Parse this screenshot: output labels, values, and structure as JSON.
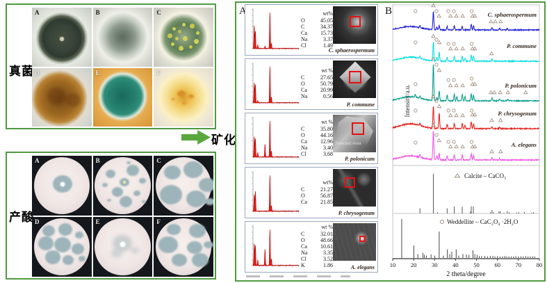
{
  "left": {
    "fungi_box": {
      "label": "真菌",
      "panels": [
        "A",
        "B",
        "C",
        "D",
        "E",
        "F"
      ]
    },
    "acid_box": {
      "label": "产酸",
      "panels": [
        "A",
        "B",
        "C",
        "D",
        "E",
        "F"
      ]
    }
  },
  "arrow": {
    "label": "矿化"
  },
  "right": {
    "panel_a": {
      "label": "A",
      "rows": [
        {
          "species": "C. sphaerospermum",
          "wt_header": "wt%",
          "elements": [
            [
              "O",
              "45.05"
            ],
            [
              "C",
              "34.37"
            ],
            [
              "Ca",
              "15.73"
            ],
            [
              "Na",
              "3.37"
            ],
            [
              "Cl",
              "1.49"
            ]
          ],
          "eds_peaks": [
            [
              0.28,
              0.62
            ],
            [
              0.52,
              0.48
            ],
            [
              1.04,
              0.1
            ],
            [
              2.62,
              0.06
            ],
            [
              3.69,
              1.0
            ],
            [
              4.01,
              0.14
            ]
          ]
        },
        {
          "species": "P. commune",
          "wt_header": "wt %",
          "elements": [
            [
              "C",
              "27.65"
            ],
            [
              "O",
              "50.79"
            ],
            [
              "Ca",
              "20.99"
            ],
            [
              "Na",
              "0.56"
            ]
          ],
          "eds_peaks": [
            [
              0.28,
              0.55
            ],
            [
              0.52,
              0.5
            ],
            [
              1.04,
              0.06
            ],
            [
              3.69,
              1.0
            ],
            [
              4.01,
              0.15
            ]
          ]
        },
        {
          "species": "P. polonicum",
          "wt_header": "wt %",
          "sem_note": "Selected Area",
          "elements": [
            [
              "C",
              "35.80"
            ],
            [
              "O",
              "44.16"
            ],
            [
              "Ca",
              "12.96"
            ],
            [
              "Na",
              "3.40"
            ],
            [
              "Cl",
              "3.68"
            ]
          ],
          "eds_peaks": [
            [
              0.28,
              0.55
            ],
            [
              0.52,
              0.5
            ],
            [
              1.04,
              0.12
            ],
            [
              2.62,
              0.35
            ],
            [
              3.69,
              1.0
            ],
            [
              4.01,
              0.16
            ]
          ]
        },
        {
          "species": "P. chrysogenum",
          "wt_header": "wt%",
          "elements": [
            [
              "C",
              "21.27"
            ],
            [
              "O",
              "56.87"
            ],
            [
              "Ca",
              "21.85"
            ]
          ],
          "eds_peaks": [
            [
              0.28,
              0.45
            ],
            [
              0.52,
              0.55
            ],
            [
              3.69,
              1.0
            ],
            [
              4.01,
              0.15
            ]
          ]
        },
        {
          "species": "A. elegans",
          "wt_header": "wt %",
          "elements": [
            [
              "C",
              "32.01"
            ],
            [
              "O",
              "48.66"
            ],
            [
              "Ca",
              "10.61"
            ],
            [
              "Na",
              "3.35"
            ],
            [
              "Cl",
              "3.52"
            ],
            [
              "K",
              "1.86"
            ]
          ],
          "eds_peaks": [
            [
              0.28,
              0.6
            ],
            [
              0.52,
              0.55
            ],
            [
              1.04,
              0.15
            ],
            [
              2.62,
              0.45
            ],
            [
              3.69,
              1.0
            ],
            [
              4.01,
              0.18
            ]
          ]
        }
      ]
    },
    "panel_b": {
      "label": "B"
    }
  },
  "chart_data": {
    "type": "line",
    "xlabel": "2 theta/degree",
    "ylabel": "Intensity/a.u.",
    "xlim": [
      10,
      80
    ],
    "xticks": [
      10,
      20,
      30,
      40,
      50,
      60,
      70,
      80
    ],
    "legend_position": "right-inside",
    "series": [
      {
        "name": "C. sphaerospermum",
        "color": "#2424d6",
        "hump": 5,
        "peaks": [
          [
            23,
            3
          ],
          [
            29.4,
            26
          ],
          [
            31.1,
            4
          ],
          [
            32.2,
            6
          ],
          [
            36,
            5
          ],
          [
            39.4,
            6
          ],
          [
            43.2,
            5
          ],
          [
            47.5,
            8
          ],
          [
            48.6,
            6
          ],
          [
            57.4,
            3
          ],
          [
            61,
            2.5
          ],
          [
            64.7,
            2
          ]
        ],
        "circles": [
          [
            20.9,
            27
          ],
          [
            30.9,
            27
          ],
          [
            36.6,
            27
          ],
          [
            39.2,
            27
          ],
          [
            47.7,
            27
          ]
        ],
        "triangles": [
          [
            29.4,
            35
          ],
          [
            32.1,
            20
          ],
          [
            37.6,
            20
          ],
          [
            40.4,
            20
          ],
          [
            43.4,
            20
          ],
          [
            48.1,
            20
          ],
          [
            49.2,
            20
          ],
          [
            56.9,
            12
          ],
          [
            59,
            12
          ],
          [
            61.5,
            12
          ]
        ]
      },
      {
        "name": "P.  commune",
        "color": "#0cdfe0",
        "hump": 6,
        "peaks": [
          [
            23,
            3
          ],
          [
            29.4,
            27
          ],
          [
            31.1,
            5
          ],
          [
            32.2,
            13
          ],
          [
            36,
            6
          ],
          [
            39.4,
            7
          ],
          [
            43.2,
            7
          ],
          [
            44.5,
            5
          ],
          [
            47.5,
            9
          ],
          [
            48.6,
            7
          ],
          [
            57.4,
            3
          ]
        ],
        "circles": [
          [
            20.9,
            27
          ],
          [
            30.9,
            31
          ],
          [
            36.6,
            25
          ],
          [
            39.2,
            25
          ],
          [
            47.7,
            25
          ]
        ],
        "triangles": [
          [
            29.4,
            36
          ],
          [
            32.2,
            27
          ],
          [
            37.6,
            18
          ],
          [
            40.4,
            18
          ],
          [
            43.4,
            18
          ],
          [
            48.1,
            18
          ],
          [
            49.2,
            18
          ],
          [
            57.2,
            11
          ]
        ]
      },
      {
        "name": "P. polonicum",
        "color": "#0aa08e",
        "hump": 6,
        "peaks": [
          [
            20.8,
            4
          ],
          [
            23,
            3
          ],
          [
            29.4,
            52
          ],
          [
            31.1,
            5
          ],
          [
            32.2,
            14
          ],
          [
            36,
            8
          ],
          [
            39.4,
            10
          ],
          [
            40.6,
            6
          ],
          [
            43.2,
            9
          ],
          [
            44.5,
            6
          ],
          [
            47.5,
            10
          ],
          [
            48.6,
            8
          ],
          [
            57.4,
            4
          ],
          [
            61,
            3
          ],
          [
            65,
            2
          ]
        ],
        "circles": [
          [
            20.9,
            24
          ],
          [
            30.9,
            52
          ],
          [
            36.6,
            30
          ],
          [
            39.2,
            30
          ],
          [
            47.7,
            32
          ]
        ],
        "triangles": [
          [
            29.4,
            60
          ],
          [
            32.2,
            44
          ],
          [
            37.6,
            22
          ],
          [
            40.4,
            22
          ],
          [
            43.4,
            22
          ],
          [
            48.1,
            24
          ],
          [
            49.2,
            24
          ],
          [
            56.9,
            12
          ],
          [
            58.5,
            12
          ],
          [
            61.3,
            12
          ],
          [
            65,
            12
          ],
          [
            73.5,
            12
          ]
        ]
      },
      {
        "name": "P. chrysogenum",
        "color": "#e62420",
        "hump": 7,
        "peaks": [
          [
            23,
            3
          ],
          [
            29.4,
            32
          ],
          [
            32.2,
            22
          ],
          [
            36,
            6
          ],
          [
            39.4,
            7
          ],
          [
            43.2,
            8
          ],
          [
            44.5,
            5
          ],
          [
            47.5,
            9
          ],
          [
            48.6,
            7
          ],
          [
            57.4,
            3
          ],
          [
            61,
            2
          ]
        ],
        "circles": [
          [
            20.9,
            26
          ],
          [
            30.9,
            40
          ],
          [
            36.6,
            26
          ],
          [
            39.2,
            26
          ],
          [
            47.7,
            26
          ]
        ],
        "triangles": [
          [
            29.4,
            46
          ],
          [
            32.2,
            32
          ],
          [
            37.6,
            19
          ],
          [
            40.4,
            19
          ],
          [
            43.4,
            19
          ],
          [
            48.1,
            20
          ],
          [
            49.2,
            20
          ],
          [
            57.3,
            12
          ],
          [
            61.5,
            12
          ]
        ]
      },
      {
        "name": "A. elegans",
        "color": "#ef5be4",
        "hump": 6,
        "peaks": [
          [
            23,
            4
          ],
          [
            29.4,
            42
          ],
          [
            31.1,
            6
          ],
          [
            32.2,
            9
          ],
          [
            36,
            6
          ],
          [
            39.4,
            7
          ],
          [
            43.2,
            7
          ],
          [
            47.5,
            9
          ],
          [
            48.6,
            7
          ],
          [
            57.4,
            3
          ],
          [
            61,
            2
          ]
        ],
        "circles": [
          [
            20.9,
            25
          ],
          [
            30.9,
            36
          ],
          [
            36.6,
            26
          ],
          [
            39.2,
            26
          ],
          [
            47.7,
            26
          ]
        ],
        "triangles": [
          [
            29.4,
            50
          ],
          [
            32.1,
            28
          ],
          [
            37.6,
            19
          ],
          [
            40.4,
            19
          ],
          [
            43.4,
            19
          ],
          [
            48.1,
            19
          ],
          [
            49.2,
            19
          ],
          [
            57.3,
            12
          ],
          [
            61.5,
            12
          ]
        ]
      }
    ],
    "references": [
      {
        "name": "Calcite – CaCO₃",
        "symbol": "triangle",
        "sticks": [
          [
            23,
            0.13
          ],
          [
            29.4,
            1
          ],
          [
            31.4,
            0.03
          ],
          [
            36,
            0.13
          ],
          [
            39.4,
            0.18
          ],
          [
            43.2,
            0.17
          ],
          [
            47.1,
            0.05
          ],
          [
            47.5,
            0.18
          ],
          [
            48.5,
            0.18
          ],
          [
            56.6,
            0.03
          ],
          [
            57.4,
            0.09
          ],
          [
            58.1,
            0.03
          ],
          [
            60.7,
            0.05
          ],
          [
            61.4,
            0.06
          ],
          [
            63.1,
            0.02
          ],
          [
            64.7,
            0.06
          ],
          [
            65.6,
            0.03
          ],
          [
            69.2,
            0.02
          ],
          [
            70.2,
            0.03
          ],
          [
            72.9,
            0.04
          ],
          [
            76.3,
            0.02
          ],
          [
            77.2,
            0.03
          ]
        ]
      },
      {
        "name": "Weddellite – CaC₂O₄ ·2H₂O",
        "symbol": "circle",
        "sticks": [
          [
            14.3,
            1
          ],
          [
            20.1,
            0.32
          ],
          [
            22,
            0.1
          ],
          [
            24.4,
            0.13
          ],
          [
            25.1,
            0.08
          ],
          [
            26.1,
            0.06
          ],
          [
            28.3,
            0.09
          ],
          [
            30.1,
            0.06
          ],
          [
            32.2,
            0.68
          ],
          [
            34.2,
            0.06
          ],
          [
            36.1,
            0.22
          ],
          [
            37.2,
            0.1
          ],
          [
            38.2,
            0.16
          ],
          [
            40.3,
            0.22
          ],
          [
            41.5,
            0.06
          ],
          [
            43.5,
            0.1
          ],
          [
            45.2,
            0.09
          ],
          [
            46.4,
            0.08
          ],
          [
            48.3,
            0.2
          ],
          [
            49.2,
            0.1
          ],
          [
            50.3,
            0.08
          ],
          [
            51.3,
            0.05
          ],
          [
            52.4,
            0.05
          ],
          [
            54,
            0.05
          ],
          [
            55.3,
            0.04
          ],
          [
            56.6,
            0.05
          ],
          [
            57.8,
            0.05
          ],
          [
            58.8,
            0.04
          ],
          [
            60,
            0.05
          ],
          [
            61.2,
            0.04
          ],
          [
            62.4,
            0.04
          ],
          [
            63.5,
            0.05
          ],
          [
            64.4,
            0.04
          ],
          [
            65.5,
            0.04
          ],
          [
            66.6,
            0.04
          ],
          [
            67.7,
            0.04
          ],
          [
            68.8,
            0.05
          ],
          [
            70,
            0.04
          ],
          [
            71.2,
            0.04
          ],
          [
            72.3,
            0.04
          ],
          [
            73.5,
            0.05
          ],
          [
            74.6,
            0.04
          ],
          [
            75.7,
            0.04
          ],
          [
            76.8,
            0.04
          ],
          [
            77.8,
            0.04
          ]
        ]
      }
    ]
  }
}
